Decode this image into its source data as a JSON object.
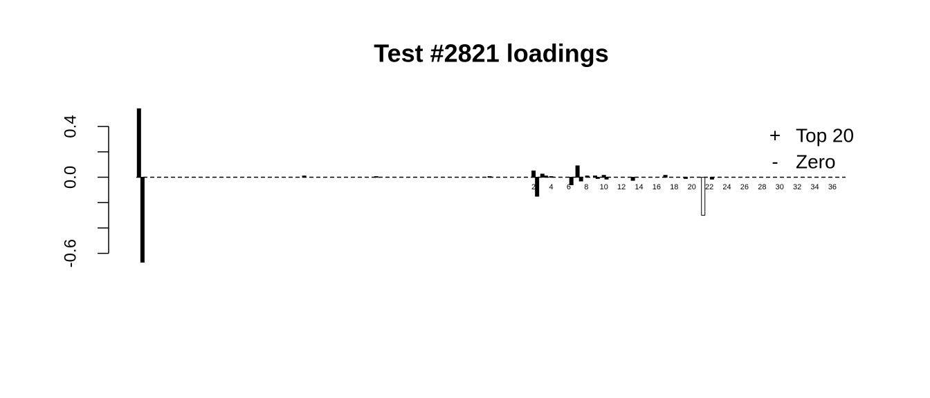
{
  "chart_data": {
    "type": "bar",
    "title": "Test #2821 loadings",
    "ylim": [
      -0.7,
      0.58
    ],
    "yticks": [
      -0.6,
      {
        "value": 0,
        "label": "0.0"
      },
      0.4
    ],
    "yminor_ticks": [
      -0.4,
      -0.2,
      0.2
    ],
    "xlim": [
      -43.2,
      37.5
    ],
    "xticks": [
      2,
      4,
      6,
      8,
      10,
      12,
      14,
      16,
      18,
      20,
      22,
      24,
      26,
      28,
      30,
      32,
      34,
      36
    ],
    "baseline_dashed": true,
    "legend": "top-right",
    "series": [
      {
        "name": "Top 20",
        "symbol": "+",
        "color": "#000000",
        "x": [
          -42.9,
          -42.5,
          -24.1,
          -15.9,
          -3.0,
          2.0,
          2.4,
          3.0,
          3.4,
          4.0,
          6.3,
          7.0,
          7.4,
          8.1,
          9.0,
          9.3,
          10.0,
          10.3,
          13.3,
          17.0,
          19.3,
          22.3
        ],
        "values": [
          0.54,
          -0.67,
          0.01,
          0.005,
          0.005,
          0.05,
          -0.15,
          0.025,
          0.01,
          0.005,
          -0.06,
          0.09,
          -0.03,
          0.01,
          0.01,
          -0.01,
          0.015,
          -0.015,
          -0.025,
          0.015,
          -0.01,
          -0.015
        ]
      },
      {
        "name": "Zero",
        "symbol": "-",
        "color": "#ffffff",
        "x": [
          21.3
        ],
        "values": [
          -0.3
        ]
      }
    ]
  }
}
